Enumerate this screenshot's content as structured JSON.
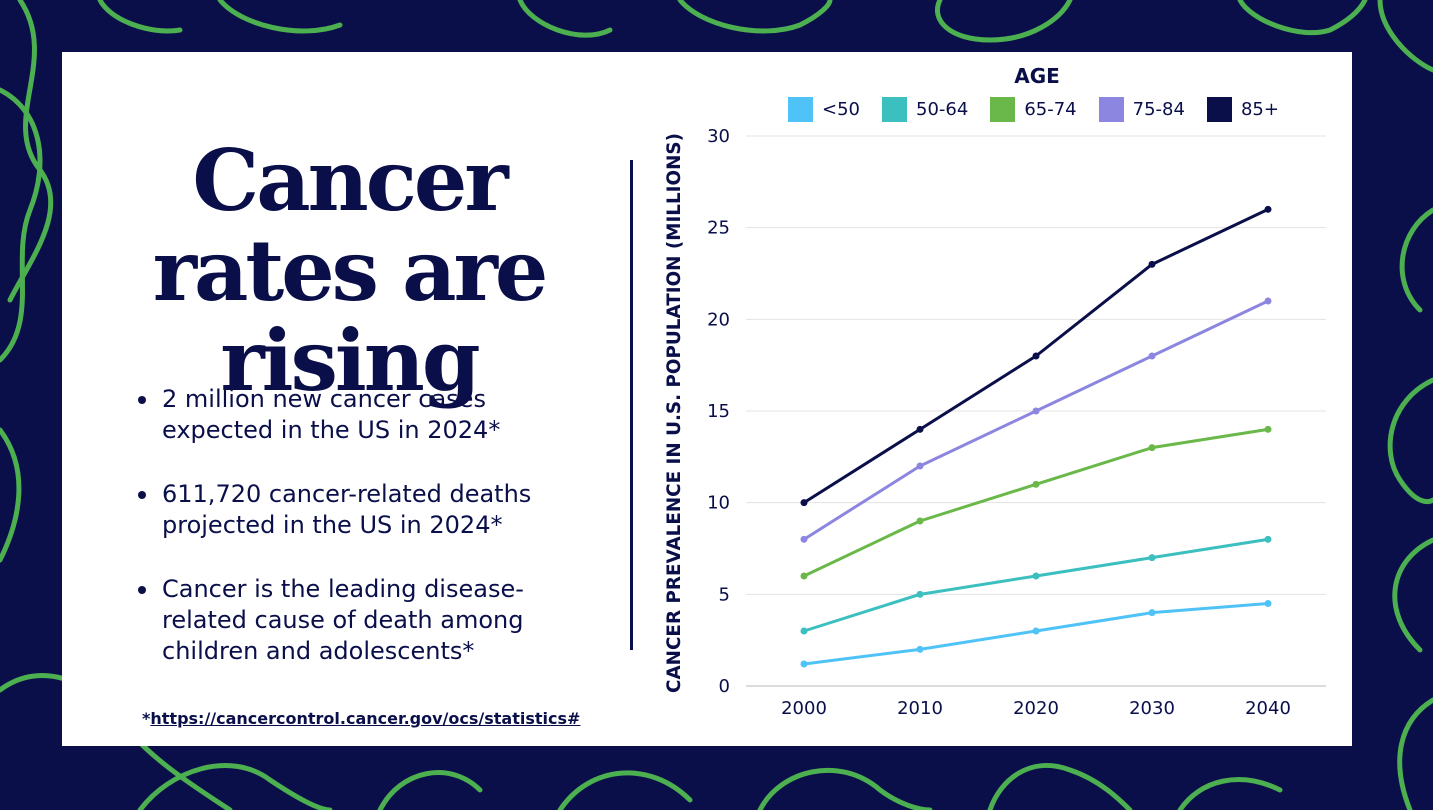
{
  "headline": [
    "Cancer",
    "rates are",
    "rising"
  ],
  "bullets": [
    "2 million new cancer cases expected in the US in 2024*",
    "611,720 cancer-related deaths projected in the US in 2024*",
    "Cancer is the leading disease-related cause of death among children and adolescents*"
  ],
  "source": {
    "prefix": "*",
    "link": "https://cancercontrol.cancer.gov/ocs/statistics#"
  },
  "colors": {
    "navy": "#0a0f4a",
    "green_pattern": "#4caf50",
    "background": "#ffffff"
  },
  "chart_data": {
    "type": "line",
    "title": "",
    "legend_title": "AGE",
    "legend_position": "top",
    "xlabel": "",
    "ylabel": "CANCER PREVALENCE IN U.S. POPULATION (MILLIONS)",
    "x": [
      2000,
      2010,
      2020,
      2030,
      2040
    ],
    "ylim": [
      0,
      30
    ],
    "yticks": [
      0,
      5,
      10,
      15,
      20,
      25,
      30
    ],
    "grid": true,
    "series": [
      {
        "name": "<50",
        "color": "#4fc3f7",
        "values": [
          1.2,
          2,
          3,
          4,
          4.5
        ]
      },
      {
        "name": "50-64",
        "color": "#3bbfbf",
        "values": [
          3,
          5,
          6,
          7,
          8
        ]
      },
      {
        "name": "65-74",
        "color": "#6ab84a",
        "values": [
          6,
          9,
          11,
          13,
          14
        ]
      },
      {
        "name": "75-84",
        "color": "#8c86e0",
        "values": [
          8,
          12,
          15,
          18,
          21
        ]
      },
      {
        "name": "85+",
        "color": "#0a0f4a",
        "values": [
          10,
          14,
          18,
          23,
          26
        ]
      }
    ]
  }
}
